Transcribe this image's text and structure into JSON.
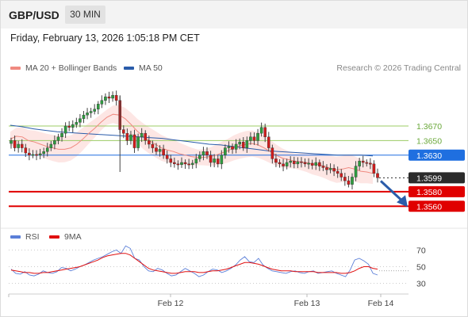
{
  "header": {
    "symbol": "GBP/USD",
    "timeframe": "30 MIN",
    "datetime": "Friday, February 13, 2026 1:05:18 PM CET"
  },
  "legend": {
    "ma20_label": "MA 20 + Bollinger Bands",
    "ma20_color": "#f08a80",
    "ma50_label": "MA 50",
    "ma50_color": "#2a5caa",
    "research": "Research © 2026 Trading Central"
  },
  "rsi_legend": {
    "rsi_label": "RSI",
    "rsi_color": "#5b7fd8",
    "ma_label": "9MA",
    "ma_color": "#e01010"
  },
  "chart_data": [
    {
      "type": "candlestick",
      "title": "",
      "ylim": [
        1.3531,
        1.3734
      ],
      "x_ticks": [
        "Feb 12",
        "Feb 13",
        "Feb 14"
      ],
      "price_levels": [
        {
          "value": "1.3670",
          "style": "green-line",
          "color": "#9ccc65"
        },
        {
          "value": "1.3650",
          "style": "green-line",
          "color": "#9ccc65"
        },
        {
          "value": "1.3630",
          "style": "blue-line",
          "color": "#1f6fe0"
        },
        {
          "value": "1.3599",
          "style": "current-price",
          "color": "#2b2b2b"
        },
        {
          "value": "1.3580",
          "style": "red-line",
          "color": "#e00000"
        },
        {
          "value": "1.3560",
          "style": "red-line",
          "color": "#e00000"
        }
      ],
      "close_series": [
        1.365,
        1.364,
        1.3645,
        1.364,
        1.3633,
        1.363,
        1.3631,
        1.363,
        1.3632,
        1.3635,
        1.364,
        1.3645,
        1.365,
        1.3655,
        1.366,
        1.367,
        1.3668,
        1.3672,
        1.3675,
        1.368,
        1.3685,
        1.3688,
        1.369,
        1.3693,
        1.37,
        1.3705,
        1.371,
        1.3708,
        1.3712,
        1.3705,
        1.3665,
        1.366,
        1.365,
        1.3658,
        1.364,
        1.3655,
        1.366,
        1.365,
        1.3645,
        1.364,
        1.3635,
        1.3638,
        1.363,
        1.3625,
        1.362,
        1.3618,
        1.3617,
        1.362,
        1.3618,
        1.3617,
        1.3619,
        1.3625,
        1.363,
        1.3635,
        1.363,
        1.362,
        1.3625,
        1.3618,
        1.363,
        1.364,
        1.3642,
        1.3638,
        1.3645,
        1.3648,
        1.364,
        1.365,
        1.3655,
        1.365,
        1.366,
        1.3668,
        1.3655,
        1.364,
        1.3625,
        1.362,
        1.3618,
        1.3615,
        1.362,
        1.3622,
        1.3618,
        1.3621,
        1.362,
        1.3618,
        1.3619,
        1.3616,
        1.362,
        1.3615,
        1.3613,
        1.361,
        1.3612,
        1.3608,
        1.3605,
        1.36,
        1.3595,
        1.359,
        1.36,
        1.3615,
        1.3622,
        1.362,
        1.3619,
        1.3618,
        1.3605,
        1.3599
      ],
      "ma20_series": [
        1.3652,
        1.3656,
        1.3655,
        1.365,
        1.3648,
        1.3645,
        1.3642,
        1.364,
        1.3638,
        1.3638,
        1.364,
        1.3645,
        1.3652,
        1.366,
        1.3667,
        1.3675,
        1.3682,
        1.3686,
        1.3685,
        1.368,
        1.3672,
        1.3663,
        1.3656,
        1.365,
        1.3645,
        1.364,
        1.3637,
        1.3635,
        1.3632,
        1.363,
        1.3628,
        1.3627,
        1.3627,
        1.3628,
        1.363,
        1.3633,
        1.3636,
        1.364,
        1.3643,
        1.3645,
        1.3646,
        1.3644,
        1.364,
        1.3635,
        1.363,
        1.3626,
        1.3624,
        1.3622,
        1.3621,
        1.362,
        1.3618,
        1.3617,
        1.3615,
        1.3612,
        1.361,
        1.3611,
        1.3613,
        1.3611,
        1.3608,
        1.3607,
        1.3605
      ],
      "ma50_series": [
        1.3671,
        1.3669,
        1.3666,
        1.3664,
        1.3662,
        1.3661,
        1.366,
        1.3659,
        1.3658,
        1.3657,
        1.3656,
        1.3655,
        1.3654,
        1.3653,
        1.3651,
        1.3649,
        1.3647,
        1.3645,
        1.3644,
        1.3642,
        1.364,
        1.3638,
        1.3636,
        1.3635,
        1.3634,
        1.3633,
        1.3632,
        1.3631,
        1.363,
        1.363,
        1.363,
        1.3629
      ],
      "forecast_arrow_to": "1.3560"
    },
    {
      "type": "line",
      "title": "",
      "x_ticks": [
        "Feb 12",
        "Feb 13",
        "Feb 14"
      ],
      "y_ticks": [
        "70",
        "50",
        "30"
      ],
      "ylim": [
        20,
        80
      ],
      "series": [
        {
          "name": "RSI",
          "color": "#5b7fd8",
          "values": [
            47,
            42,
            41,
            44,
            40,
            39,
            41,
            45,
            43,
            42,
            44,
            49,
            48,
            45,
            47,
            50,
            52,
            55,
            58,
            60,
            62,
            65,
            68,
            70,
            66,
            75,
            72,
            60,
            58,
            50,
            45,
            44,
            48,
            46,
            42,
            39,
            40,
            44,
            48,
            45,
            42,
            38,
            40,
            44,
            47,
            46,
            43,
            45,
            48,
            52,
            58,
            62,
            56,
            55,
            60,
            52,
            48,
            45,
            44,
            43,
            42,
            44,
            45,
            43,
            42,
            44,
            45,
            42,
            43,
            44,
            45,
            42,
            40,
            38,
            46,
            58,
            60,
            57,
            53,
            42,
            40
          ]
        },
        {
          "name": "9MA",
          "color": "#e01010",
          "values": [
            46,
            45,
            44,
            43,
            43,
            42,
            42,
            43,
            43,
            44,
            45,
            46,
            47,
            48,
            49,
            50,
            52,
            54,
            56,
            58,
            61,
            63,
            64,
            65,
            66,
            66,
            64,
            60,
            56,
            52,
            48,
            46,
            45,
            44,
            43,
            42,
            42,
            43,
            44,
            44,
            44,
            43,
            43,
            44,
            45,
            45,
            46,
            47,
            49,
            51,
            53,
            55,
            55,
            54,
            53,
            51,
            49,
            47,
            46,
            45,
            45,
            45,
            44,
            44,
            44,
            44,
            44,
            43,
            43,
            43,
            43,
            43,
            42,
            42,
            43,
            45,
            48,
            50,
            50,
            48,
            47
          ]
        }
      ]
    }
  ]
}
